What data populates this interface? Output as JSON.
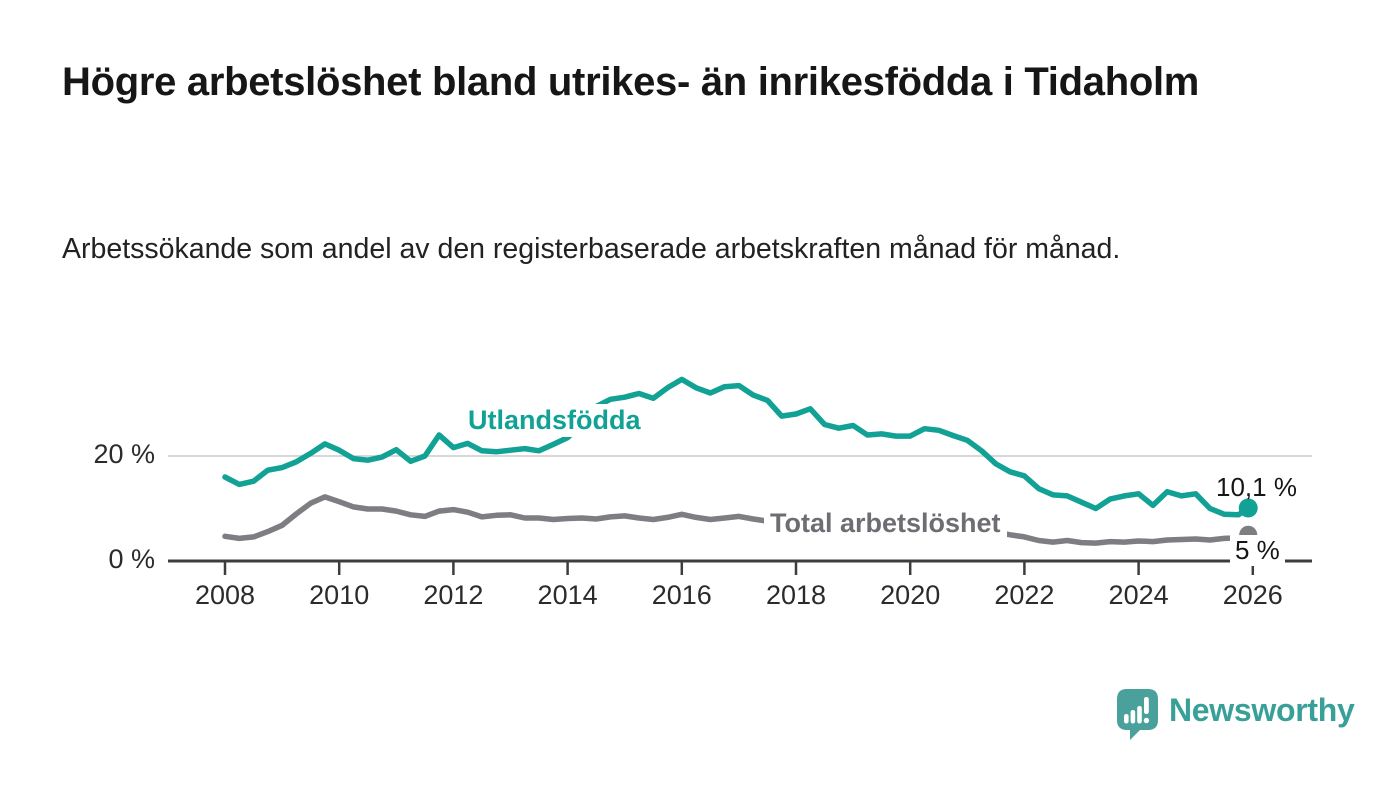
{
  "header": {
    "title": "Högre arbetslöshet bland utrikes- än inrikesfödda i Tidaholm",
    "subtitle": "Arbetssökande som andel av den registerbaserade arbetskraften månad för månad."
  },
  "footer": {
    "brand": "Newsworthy",
    "brand_color": "#38a099",
    "logo_icon": "newsworthy-speech-bubble-bar-chart-icon"
  },
  "chart_data": {
    "type": "line",
    "unit": "%",
    "grid": "horizontal-20-only",
    "legend": "inline-labels",
    "xlim": [
      2007,
      2027
    ],
    "ylim": [
      0,
      38
    ],
    "colors": {
      "gridline": "#d8d8d8",
      "axis": "#3d3d3d",
      "tick_label": "#2b2b2b"
    },
    "x_ticks": [
      {
        "year": 2008,
        "label": "2008"
      },
      {
        "year": 2010,
        "label": "2010"
      },
      {
        "year": 2012,
        "label": "2012"
      },
      {
        "year": 2014,
        "label": "2014"
      },
      {
        "year": 2016,
        "label": "2016"
      },
      {
        "year": 2018,
        "label": "2018"
      },
      {
        "year": 2020,
        "label": "2020"
      },
      {
        "year": 2022,
        "label": "2022"
      },
      {
        "year": 2024,
        "label": "2024"
      },
      {
        "year": 2026,
        "label": "2026"
      }
    ],
    "y_ticks": [
      {
        "pct": 20,
        "label": "20 %",
        "gridline": true
      },
      {
        "pct": 0,
        "label": "0 %",
        "gridline": false
      }
    ],
    "x": [
      2008,
      2008.25,
      2008.5,
      2008.75,
      2009,
      2009.25,
      2009.5,
      2009.75,
      2010,
      2010.25,
      2010.5,
      2010.75,
      2011,
      2011.25,
      2011.5,
      2011.75,
      2012,
      2012.25,
      2012.5,
      2012.75,
      2013,
      2013.25,
      2013.5,
      2013.75,
      2014,
      2014.25,
      2014.5,
      2014.75,
      2015,
      2015.25,
      2015.5,
      2015.75,
      2016,
      2016.25,
      2016.5,
      2016.75,
      2017,
      2017.25,
      2017.5,
      2017.75,
      2018,
      2018.25,
      2018.5,
      2018.75,
      2019,
      2019.25,
      2019.5,
      2019.75,
      2020,
      2020.25,
      2020.5,
      2020.75,
      2021,
      2021.25,
      2021.5,
      2021.75,
      2022,
      2022.25,
      2022.5,
      2022.75,
      2023,
      2023.25,
      2023.5,
      2023.75,
      2024,
      2024.25,
      2024.5,
      2024.75,
      2025,
      2025.25,
      2025.5,
      2025.75,
      2025.92
    ],
    "series": [
      {
        "name": "Utlandsfödda",
        "inline_label": "Utlandsfödda",
        "color": "#12a295",
        "end_label": "10,1 %",
        "end_value": 10.1,
        "values": [
          16.0,
          14.6,
          15.2,
          17.3,
          17.8,
          18.9,
          20.5,
          22.3,
          21.1,
          19.5,
          19.2,
          19.8,
          21.2,
          19.0,
          20.0,
          24.0,
          21.6,
          22.4,
          21.0,
          20.8,
          21.1,
          21.4,
          21.0,
          22.2,
          23.5,
          26.0,
          29.4,
          30.8,
          31.2,
          31.9,
          31.0,
          33.0,
          34.6,
          33.0,
          32.0,
          33.2,
          33.4,
          31.6,
          30.6,
          27.6,
          28.0,
          29.0,
          26.0,
          25.3,
          25.8,
          24.0,
          24.2,
          23.8,
          23.8,
          25.2,
          24.9,
          23.9,
          23.0,
          21.0,
          18.5,
          17.0,
          16.2,
          13.8,
          12.6,
          12.4,
          11.2,
          10.0,
          11.8,
          12.4,
          12.8,
          10.6,
          13.2,
          12.4,
          12.8,
          10.0,
          8.9,
          8.8,
          10.1
        ]
      },
      {
        "name": "Total arbetslöshet",
        "inline_label": "Total arbetslöshet",
        "color": "#7d7d82",
        "label_color": "#6d6d73",
        "end_label": "5 %",
        "end_value": 5.0,
        "values": [
          4.7,
          4.3,
          4.6,
          5.6,
          6.8,
          9.0,
          11.0,
          12.2,
          11.3,
          10.3,
          9.9,
          9.9,
          9.5,
          8.8,
          8.5,
          9.5,
          9.8,
          9.3,
          8.4,
          8.7,
          8.8,
          8.2,
          8.2,
          7.9,
          8.1,
          8.2,
          8.0,
          8.4,
          8.6,
          8.2,
          7.9,
          8.3,
          8.9,
          8.3,
          7.9,
          8.2,
          8.5,
          8.0,
          7.6,
          7.1,
          7.0,
          7.2,
          6.8,
          6.6,
          6.6,
          6.4,
          6.3,
          6.5,
          6.8,
          7.6,
          7.4,
          7.0,
          6.6,
          6.1,
          5.5,
          5.0,
          4.6,
          3.9,
          3.6,
          3.9,
          3.5,
          3.4,
          3.7,
          3.6,
          3.8,
          3.7,
          4.0,
          4.1,
          4.2,
          4.0,
          4.3,
          4.4,
          5.0
        ]
      }
    ]
  }
}
